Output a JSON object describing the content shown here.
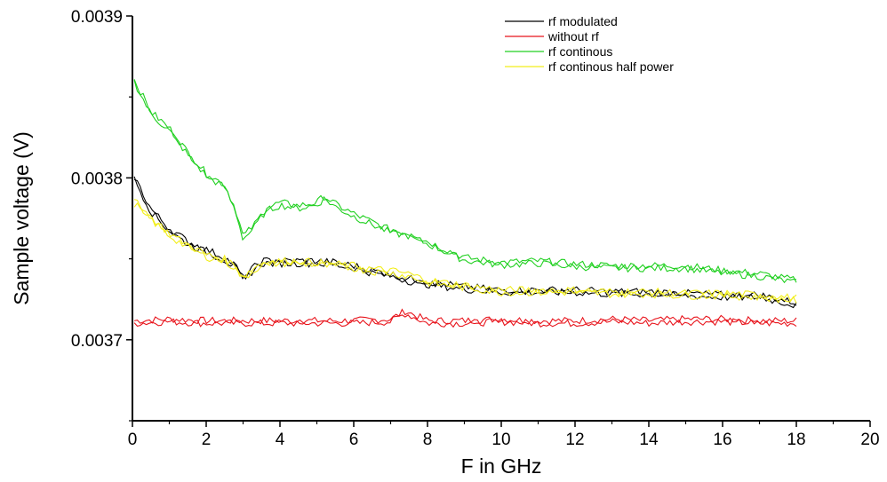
{
  "chart_data": {
    "type": "line",
    "title": "",
    "xlabel": "F in GHz",
    "ylabel": "Sample voltage (V)",
    "xlim": [
      0,
      20
    ],
    "ylim": [
      0.00365,
      0.0039
    ],
    "x_ticks": [
      0,
      2,
      4,
      6,
      8,
      10,
      12,
      14,
      16,
      18,
      20
    ],
    "x_tick_labels": [
      "0",
      "2",
      "4",
      "6",
      "8",
      "10",
      "12",
      "14",
      "16",
      "18",
      "20"
    ],
    "y_ticks": [
      0.0037,
      0.0038,
      0.0039
    ],
    "y_tick_labels": [
      "0.0037",
      "0.0038",
      "0.0039"
    ],
    "y_minor_ticks": [
      0.00365,
      0.00375,
      0.00385
    ],
    "grid": false,
    "legend_position": "top-right",
    "series": [
      {
        "name": "rf modulated",
        "color": "#000000",
        "x": [
          0.05,
          0.5,
          1,
          1.5,
          2,
          2.5,
          2.8,
          3.0,
          3.2,
          3.5,
          4,
          4.5,
          5,
          5.5,
          6,
          6.5,
          7,
          7.5,
          8,
          9,
          10,
          11,
          12,
          13,
          14,
          15,
          16,
          17,
          18
        ],
        "y": [
          0.0038,
          0.00378,
          0.003768,
          0.00376,
          0.003755,
          0.00375,
          0.003745,
          0.003737,
          0.003742,
          0.003748,
          0.003748,
          0.003748,
          0.003748,
          0.003747,
          0.003745,
          0.003742,
          0.00374,
          0.003737,
          0.003735,
          0.003732,
          0.00373,
          0.00373,
          0.00373,
          0.003729,
          0.003729,
          0.003728,
          0.003727,
          0.003727,
          0.003722
        ]
      },
      {
        "name": "without rf",
        "color": "#e8141c",
        "x": [
          0.05,
          1,
          2,
          3,
          4,
          5,
          6,
          7,
          7.4,
          8,
          9,
          10,
          11,
          12,
          13,
          14,
          15,
          16,
          17,
          18
        ],
        "y": [
          0.003711,
          0.003712,
          0.003711,
          0.003711,
          0.003711,
          0.003711,
          0.003711,
          0.003712,
          0.003717,
          0.003711,
          0.003711,
          0.003712,
          0.003711,
          0.003711,
          0.003712,
          0.003711,
          0.003712,
          0.003712,
          0.003711,
          0.003711
        ]
      },
      {
        "name": "rf continous",
        "color": "#20d020",
        "x": [
          0.05,
          0.5,
          1,
          1.5,
          2,
          2.5,
          2.8,
          3.0,
          3.3,
          3.6,
          4,
          4.5,
          5,
          5.2,
          5.5,
          6,
          6.5,
          7,
          7.5,
          8,
          8.5,
          9,
          10,
          11,
          12,
          13,
          14,
          15,
          16,
          17,
          18
        ],
        "y": [
          0.00386,
          0.00384,
          0.00383,
          0.003815,
          0.003802,
          0.003795,
          0.00378,
          0.003763,
          0.00377,
          0.00378,
          0.003784,
          0.003782,
          0.003784,
          0.003788,
          0.003783,
          0.003777,
          0.003772,
          0.003767,
          0.003765,
          0.00376,
          0.003755,
          0.00375,
          0.003747,
          0.003748,
          0.003746,
          0.003745,
          0.003745,
          0.003745,
          0.003742,
          0.00374,
          0.003736
        ]
      },
      {
        "name": "rf continous half power",
        "color": "#f2ee1a",
        "x": [
          0.05,
          0.5,
          1,
          1.5,
          2,
          2.5,
          2.8,
          3.0,
          3.2,
          3.5,
          4,
          4.5,
          5,
          5.5,
          6,
          6.5,
          7,
          7.5,
          8,
          9,
          10,
          11,
          12,
          13,
          14,
          15,
          16,
          17,
          18
        ],
        "y": [
          0.003785,
          0.003775,
          0.003765,
          0.003758,
          0.003752,
          0.003749,
          0.003745,
          0.003738,
          0.003742,
          0.003747,
          0.003748,
          0.003748,
          0.003747,
          0.003746,
          0.003745,
          0.003743,
          0.003742,
          0.00374,
          0.003736,
          0.003733,
          0.00373,
          0.00373,
          0.00373,
          0.003729,
          0.003729,
          0.003728,
          0.003728,
          0.003727,
          0.003725
        ]
      }
    ]
  }
}
